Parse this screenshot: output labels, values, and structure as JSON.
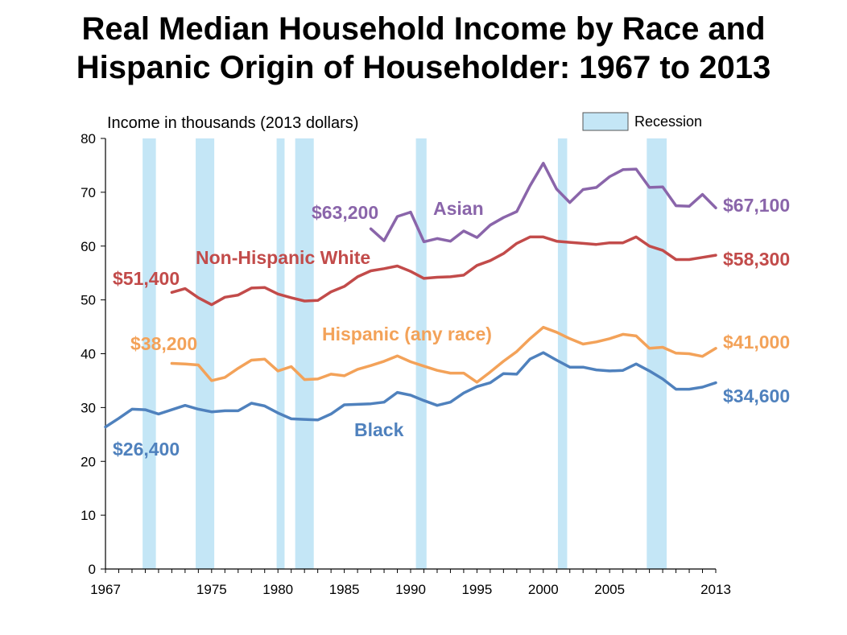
{
  "title_line1": "Real Median Household Income by Race and",
  "title_line2": "Hispanic Origin of Householder: 1967 to 2013",
  "chart_data": {
    "type": "line",
    "title": "Real Median Household Income by Race and Hispanic Origin of Householder: 1967 to 2013",
    "ylabel": "Income in thousands (2013 dollars)",
    "xlabel": "",
    "xlim": [
      1967,
      2013
    ],
    "ylim": [
      0,
      80
    ],
    "yticks": [
      "0",
      "10",
      "20",
      "30",
      "40",
      "50",
      "60",
      "70",
      "80"
    ],
    "xticks": [
      {
        "value": 1967,
        "label": "1967"
      },
      {
        "value": 1975,
        "label": "1975"
      },
      {
        "value": 1980,
        "label": "1980"
      },
      {
        "value": 1985,
        "label": "1985"
      },
      {
        "value": 1990,
        "label": "1990"
      },
      {
        "value": 1995,
        "label": "1995"
      },
      {
        "value": 2000,
        "label": "2000"
      },
      {
        "value": 2005,
        "label": "2005"
      },
      {
        "value": 2013,
        "label": "2013"
      }
    ],
    "legend": {
      "label": "Recession",
      "color": "#c4e6f6",
      "position": "top-right"
    },
    "recessions": [
      [
        1969.8,
        1970.8
      ],
      [
        1973.8,
        1975.2
      ],
      [
        1979.9,
        1980.5
      ],
      [
        1981.3,
        1982.7
      ],
      [
        1990.4,
        1991.2
      ],
      [
        2001.1,
        2001.8
      ],
      [
        2007.8,
        2009.3
      ]
    ],
    "series": [
      {
        "name": "Asian",
        "label": "Asian",
        "color": "#8a65aa",
        "start_label": "$63,200",
        "end_label": "$67,100",
        "x": [
          1987,
          1988,
          1989,
          1990,
          1991,
          1992,
          1993,
          1994,
          1995,
          1996,
          1997,
          1998,
          1999,
          2000,
          2001,
          2002,
          2003,
          2004,
          2005,
          2006,
          2007,
          2008,
          2009,
          2010,
          2011,
          2012,
          2013
        ],
        "values": [
          63.2,
          61.0,
          65.5,
          66.3,
          60.8,
          61.4,
          60.9,
          62.8,
          61.6,
          63.9,
          65.3,
          66.4,
          71.2,
          75.4,
          70.6,
          68.1,
          70.5,
          70.9,
          72.9,
          74.2,
          74.3,
          70.9,
          71.0,
          67.5,
          67.4,
          69.6,
          67.1
        ]
      },
      {
        "name": "Non-Hispanic White",
        "label": "Non-Hispanic White",
        "color": "#c24b4a",
        "start_label": "$51,400",
        "end_label": "$58,300",
        "x": [
          1972,
          1973,
          1974,
          1975,
          1976,
          1977,
          1978,
          1979,
          1980,
          1981,
          1982,
          1983,
          1984,
          1985,
          1986,
          1987,
          1988,
          1989,
          1990,
          1991,
          1992,
          1993,
          1994,
          1995,
          1996,
          1997,
          1998,
          1999,
          2000,
          2001,
          2002,
          2003,
          2004,
          2005,
          2006,
          2007,
          2008,
          2009,
          2010,
          2011,
          2012,
          2013
        ],
        "values": [
          51.4,
          52.1,
          50.4,
          49.1,
          50.5,
          50.9,
          52.2,
          52.3,
          51.1,
          50.4,
          49.8,
          49.9,
          51.5,
          52.5,
          54.3,
          55.4,
          55.8,
          56.3,
          55.3,
          54.0,
          54.2,
          54.3,
          54.6,
          56.4,
          57.3,
          58.6,
          60.5,
          61.7,
          61.7,
          60.9,
          60.7,
          60.5,
          60.3,
          60.6,
          60.6,
          61.7,
          60.0,
          59.2,
          57.5,
          57.5,
          57.9,
          58.3
        ]
      },
      {
        "name": "Hispanic (any race)",
        "label": "Hispanic (any race)",
        "color": "#f3a259",
        "start_label": "$38,200",
        "end_label": "$41,000",
        "x": [
          1972,
          1973,
          1974,
          1975,
          1976,
          1977,
          1978,
          1979,
          1980,
          1981,
          1982,
          1983,
          1984,
          1985,
          1986,
          1987,
          1988,
          1989,
          1990,
          1991,
          1992,
          1993,
          1994,
          1995,
          1996,
          1997,
          1998,
          1999,
          2000,
          2001,
          2002,
          2003,
          2004,
          2005,
          2006,
          2007,
          2008,
          2009,
          2010,
          2011,
          2012,
          2013
        ],
        "values": [
          38.2,
          38.1,
          37.9,
          35.0,
          35.6,
          37.3,
          38.8,
          39.0,
          36.8,
          37.6,
          35.2,
          35.3,
          36.2,
          35.9,
          37.1,
          37.8,
          38.6,
          39.6,
          38.5,
          37.7,
          36.9,
          36.4,
          36.4,
          34.7,
          36.6,
          38.6,
          40.4,
          42.8,
          44.9,
          44.0,
          42.8,
          41.8,
          42.2,
          42.8,
          43.6,
          43.3,
          41.0,
          41.2,
          40.1,
          40.0,
          39.5,
          41.0
        ]
      },
      {
        "name": "Black",
        "label": "Black",
        "color": "#4f81bd",
        "start_label": "$26,400",
        "end_label": "$34,600",
        "x": [
          1967,
          1968,
          1969,
          1970,
          1971,
          1972,
          1973,
          1974,
          1975,
          1976,
          1977,
          1978,
          1979,
          1980,
          1981,
          1982,
          1983,
          1984,
          1985,
          1986,
          1987,
          1988,
          1989,
          1990,
          1991,
          1992,
          1993,
          1994,
          1995,
          1996,
          1997,
          1998,
          1999,
          2000,
          2001,
          2002,
          2003,
          2004,
          2005,
          2006,
          2007,
          2008,
          2009,
          2010,
          2011,
          2012,
          2013
        ],
        "values": [
          26.4,
          28.0,
          29.7,
          29.6,
          28.8,
          29.6,
          30.4,
          29.7,
          29.2,
          29.4,
          29.4,
          30.8,
          30.3,
          29.0,
          27.9,
          27.8,
          27.7,
          28.8,
          30.5,
          30.6,
          30.7,
          31.0,
          32.8,
          32.3,
          31.3,
          30.4,
          31.0,
          32.7,
          33.9,
          34.6,
          36.3,
          36.2,
          39.0,
          40.2,
          38.8,
          37.5,
          37.5,
          37.0,
          36.8,
          36.9,
          38.1,
          36.8,
          35.3,
          33.4,
          33.4,
          33.8,
          34.6
        ]
      }
    ]
  }
}
